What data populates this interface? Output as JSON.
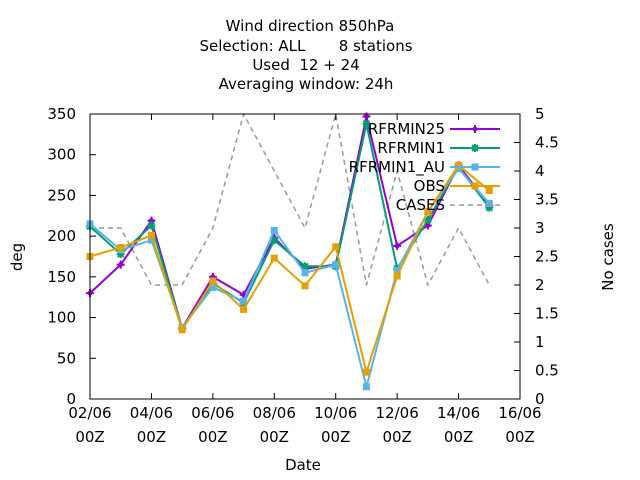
{
  "chart_data": {
    "type": "line",
    "title_lines": [
      "Wind direction 850hPa",
      "Selection: ALL       8 stations",
      "Used  12 + 24",
      "Averaging window: 24h"
    ],
    "xlabel": "Date",
    "ylabel": "deg",
    "y2label": "No cases",
    "x_ticks": [
      {
        "day": 2,
        "line1": "02/06",
        "line2": "00Z"
      },
      {
        "day": 4,
        "line1": "04/06",
        "line2": "00Z"
      },
      {
        "day": 6,
        "line1": "06/06",
        "line2": "00Z"
      },
      {
        "day": 8,
        "line1": "08/06",
        "line2": "00Z"
      },
      {
        "day": 10,
        "line1": "10/06",
        "line2": "00Z"
      },
      {
        "day": 12,
        "line1": "12/06",
        "line2": "00Z"
      },
      {
        "day": 14,
        "line1": "14/06",
        "line2": "00Z"
      },
      {
        "day": 16,
        "line1": "16/06",
        "line2": "00Z"
      }
    ],
    "xlim": [
      2,
      16
    ],
    "ylim": [
      0,
      350
    ],
    "y_ticks": [
      "0",
      "50",
      "100",
      "150",
      "200",
      "250",
      "300",
      "350"
    ],
    "y2lim": [
      0,
      5
    ],
    "y2_ticks": [
      "0",
      "0.5",
      "1",
      "1.5",
      "2",
      "2.5",
      "3",
      "3.5",
      "4",
      "4.5",
      "5"
    ],
    "x": [
      2,
      3,
      4,
      5,
      6,
      7,
      8,
      9,
      10,
      11,
      12,
      13,
      14,
      15
    ],
    "legend_position": "top-right",
    "series": [
      {
        "name": "RFRMIN25",
        "axis": "y",
        "color": "#9400d3",
        "marker": "plus",
        "values": [
          130,
          165,
          219,
          87,
          150,
          128,
          198,
          160,
          165,
          347,
          188,
          213,
          287,
          238
        ]
      },
      {
        "name": "RFRMIN1",
        "axis": "y",
        "color": "#009e73",
        "marker": "star",
        "values": [
          212,
          178,
          213,
          87,
          142,
          118,
          195,
          163,
          163,
          338,
          160,
          220,
          285,
          235
        ]
      },
      {
        "name": "RFRMIN1_AU",
        "axis": "y",
        "color": "#56b4e9",
        "marker": "box",
        "values": [
          215,
          183,
          195,
          88,
          137,
          120,
          207,
          155,
          165,
          15,
          158,
          230,
          283,
          240
        ]
      },
      {
        "name": "OBS",
        "axis": "y",
        "color": "#e69f00",
        "marker": "box",
        "values": [
          175,
          186,
          201,
          85,
          145,
          110,
          173,
          139,
          187,
          33,
          151,
          230,
          287,
          256
        ]
      },
      {
        "name": "CASES",
        "axis": "y2",
        "color": "#999999",
        "marker": "none",
        "dashed": true,
        "values": [
          3,
          3,
          2,
          2,
          3,
          5,
          4,
          3,
          5,
          2,
          4,
          2,
          3,
          2
        ]
      }
    ]
  }
}
